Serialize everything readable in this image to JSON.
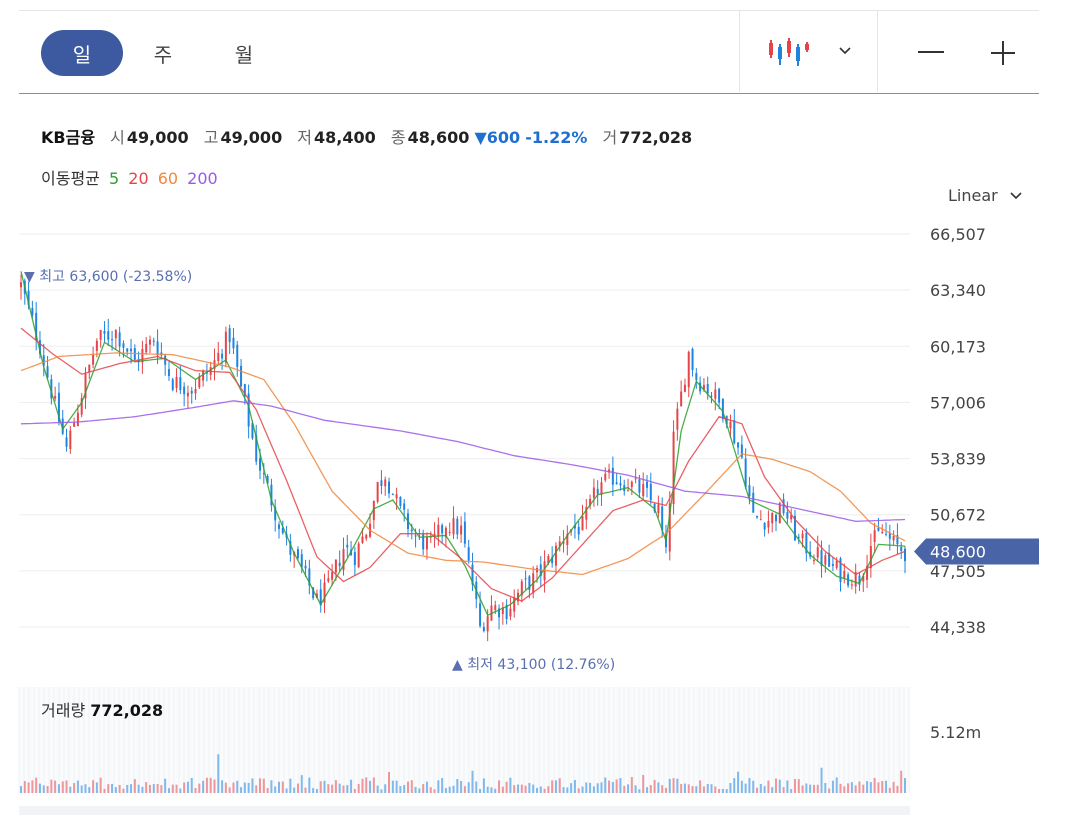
{
  "toolbar": {
    "tabs": [
      {
        "label": "일",
        "active": true
      },
      {
        "label": "주",
        "active": false
      },
      {
        "label": "월",
        "active": false
      }
    ],
    "chart_type_icon": "candlestick-icon",
    "dropdown_icon": "chevron-down-icon",
    "zoom_out_icon": "minus-icon",
    "zoom_in_icon": "plus-icon"
  },
  "info": {
    "name": "KB금융",
    "open_label": "시",
    "open": "49,000",
    "high_label": "고",
    "high": "49,000",
    "low_label": "저",
    "low": "48,400",
    "close_label": "종",
    "close": "48,600",
    "change_arrow": "▼",
    "change": "600",
    "change_pct": "-1.22%",
    "volume_label": "거",
    "volume": "772,028"
  },
  "ma": {
    "label": "이동평균",
    "periods": [
      {
        "label": "5",
        "color": "#2ca02c"
      },
      {
        "label": "20",
        "color": "#e5454a"
      },
      {
        "label": "60",
        "color": "#f0883e"
      },
      {
        "label": "200",
        "color": "#9b59e6"
      }
    ]
  },
  "scale": {
    "label": "Linear"
  },
  "colors": {
    "up": "#e5454a",
    "down": "#1f84e0",
    "accent": "#3d5aa0",
    "price_tag": "#4a64a8"
  },
  "chart_data": [
    {
      "type": "candlestick",
      "title": "",
      "ylim": [
        43000,
        66507
      ],
      "y_ticks": [
        {
          "value": 66507,
          "label": "66,507"
        },
        {
          "value": 63340,
          "label": "63,340"
        },
        {
          "value": 60173,
          "label": "60,173"
        },
        {
          "value": 57006,
          "label": "57,006"
        },
        {
          "value": 53839,
          "label": "53,839"
        },
        {
          "value": 50672,
          "label": "50,672"
        },
        {
          "value": 47505,
          "label": "47,505"
        },
        {
          "value": 44338,
          "label": "44,338"
        }
      ],
      "last_price": {
        "value": 48600,
        "label": "48,600"
      },
      "high_annotation": {
        "arrow": "▼",
        "label": "최고",
        "value": "63,600",
        "pct": "(-23.58%)",
        "price": 63600
      },
      "low_annotation": {
        "arrow": "▲",
        "label": "최저",
        "value": "43,100",
        "pct": "(12.76%)",
        "price": 43100
      },
      "close_path": [
        {
          "i": 0,
          "v": 63600
        },
        {
          "i": 5,
          "v": 60200
        },
        {
          "i": 9,
          "v": 56800
        },
        {
          "i": 12,
          "v": 54400
        },
        {
          "i": 16,
          "v": 57500
        },
        {
          "i": 20,
          "v": 60500
        },
        {
          "i": 25,
          "v": 61000
        },
        {
          "i": 30,
          "v": 59300
        },
        {
          "i": 35,
          "v": 60600
        },
        {
          "i": 40,
          "v": 58200
        },
        {
          "i": 45,
          "v": 57800
        },
        {
          "i": 50,
          "v": 58900
        },
        {
          "i": 55,
          "v": 60800
        },
        {
          "i": 58,
          "v": 57800
        },
        {
          "i": 62,
          "v": 54000
        },
        {
          "i": 66,
          "v": 51500
        },
        {
          "i": 70,
          "v": 49000
        },
        {
          "i": 74,
          "v": 47500
        },
        {
          "i": 78,
          "v": 45800
        },
        {
          "i": 81,
          "v": 46500
        },
        {
          "i": 85,
          "v": 48800
        },
        {
          "i": 88,
          "v": 48400
        },
        {
          "i": 91,
          "v": 49800
        },
        {
          "i": 94,
          "v": 52300
        },
        {
          "i": 96,
          "v": 53000
        },
        {
          "i": 100,
          "v": 50800
        },
        {
          "i": 104,
          "v": 49400
        },
        {
          "i": 108,
          "v": 48900
        },
        {
          "i": 112,
          "v": 50200
        },
        {
          "i": 116,
          "v": 49800
        },
        {
          "i": 119,
          "v": 46800
        },
        {
          "i": 121,
          "v": 44300
        },
        {
          "i": 124,
          "v": 45500
        },
        {
          "i": 128,
          "v": 45300
        },
        {
          "i": 132,
          "v": 46500
        },
        {
          "i": 136,
          "v": 47200
        },
        {
          "i": 140,
          "v": 48300
        },
        {
          "i": 144,
          "v": 49800
        },
        {
          "i": 148,
          "v": 50000
        },
        {
          "i": 152,
          "v": 52200
        },
        {
          "i": 156,
          "v": 52800
        },
        {
          "i": 160,
          "v": 52400
        },
        {
          "i": 164,
          "v": 52000
        },
        {
          "i": 168,
          "v": 50900
        },
        {
          "i": 170,
          "v": 48300
        },
        {
          "i": 172,
          "v": 55000
        },
        {
          "i": 174,
          "v": 57400
        },
        {
          "i": 176,
          "v": 59800
        },
        {
          "i": 178,
          "v": 58400
        },
        {
          "i": 182,
          "v": 57600
        },
        {
          "i": 186,
          "v": 56300
        },
        {
          "i": 190,
          "v": 53900
        },
        {
          "i": 193,
          "v": 50500
        },
        {
          "i": 197,
          "v": 50400
        },
        {
          "i": 201,
          "v": 51000
        },
        {
          "i": 205,
          "v": 49200
        },
        {
          "i": 209,
          "v": 48500
        },
        {
          "i": 213,
          "v": 47800
        },
        {
          "i": 217,
          "v": 47300
        },
        {
          "i": 221,
          "v": 47100
        },
        {
          "i": 224,
          "v": 49000
        },
        {
          "i": 227,
          "v": 49700
        },
        {
          "i": 230,
          "v": 49000
        },
        {
          "i": 233,
          "v": 48600
        }
      ],
      "ma_series": [
        {
          "name": "5",
          "points": [
            {
              "i": 0,
              "v": 64400
            },
            {
              "i": 6,
              "v": 59000
            },
            {
              "i": 11,
              "v": 55500
            },
            {
              "i": 16,
              "v": 57000
            },
            {
              "i": 22,
              "v": 60400
            },
            {
              "i": 30,
              "v": 59300
            },
            {
              "i": 38,
              "v": 59500
            },
            {
              "i": 46,
              "v": 58300
            },
            {
              "i": 54,
              "v": 59400
            },
            {
              "i": 60,
              "v": 56800
            },
            {
              "i": 66,
              "v": 51500
            },
            {
              "i": 72,
              "v": 48500
            },
            {
              "i": 79,
              "v": 45600
            },
            {
              "i": 86,
              "v": 48200
            },
            {
              "i": 93,
              "v": 51000
            },
            {
              "i": 98,
              "v": 51500
            },
            {
              "i": 105,
              "v": 49400
            },
            {
              "i": 112,
              "v": 49500
            },
            {
              "i": 117,
              "v": 47800
            },
            {
              "i": 123,
              "v": 45000
            },
            {
              "i": 129,
              "v": 45600
            },
            {
              "i": 136,
              "v": 47000
            },
            {
              "i": 144,
              "v": 49500
            },
            {
              "i": 152,
              "v": 51800
            },
            {
              "i": 160,
              "v": 52200
            },
            {
              "i": 167,
              "v": 51000
            },
            {
              "i": 170,
              "v": 49200
            },
            {
              "i": 174,
              "v": 55400
            },
            {
              "i": 178,
              "v": 58200
            },
            {
              "i": 185,
              "v": 56500
            },
            {
              "i": 192,
              "v": 51500
            },
            {
              "i": 200,
              "v": 50700
            },
            {
              "i": 208,
              "v": 48400
            },
            {
              "i": 215,
              "v": 47200
            },
            {
              "i": 221,
              "v": 46800
            },
            {
              "i": 226,
              "v": 49000
            },
            {
              "i": 233,
              "v": 48900
            }
          ]
        },
        {
          "name": "20",
          "points": [
            {
              "i": 0,
              "v": 61200
            },
            {
              "i": 8,
              "v": 59800
            },
            {
              "i": 16,
              "v": 58600
            },
            {
              "i": 26,
              "v": 59200
            },
            {
              "i": 36,
              "v": 59600
            },
            {
              "i": 46,
              "v": 58800
            },
            {
              "i": 55,
              "v": 58700
            },
            {
              "i": 62,
              "v": 56600
            },
            {
              "i": 70,
              "v": 52600
            },
            {
              "i": 78,
              "v": 48300
            },
            {
              "i": 85,
              "v": 46900
            },
            {
              "i": 92,
              "v": 47700
            },
            {
              "i": 100,
              "v": 49600
            },
            {
              "i": 108,
              "v": 49600
            },
            {
              "i": 116,
              "v": 48200
            },
            {
              "i": 124,
              "v": 46500
            },
            {
              "i": 132,
              "v": 45800
            },
            {
              "i": 140,
              "v": 47100
            },
            {
              "i": 148,
              "v": 49000
            },
            {
              "i": 156,
              "v": 50900
            },
            {
              "i": 164,
              "v": 51500
            },
            {
              "i": 170,
              "v": 51200
            },
            {
              "i": 176,
              "v": 53700
            },
            {
              "i": 184,
              "v": 56200
            },
            {
              "i": 190,
              "v": 55800
            },
            {
              "i": 196,
              "v": 52800
            },
            {
              "i": 204,
              "v": 50400
            },
            {
              "i": 212,
              "v": 48600
            },
            {
              "i": 220,
              "v": 47300
            },
            {
              "i": 227,
              "v": 48100
            },
            {
              "i": 233,
              "v": 48600
            }
          ]
        },
        {
          "name": "60",
          "points": [
            {
              "i": 0,
              "v": 58800
            },
            {
              "i": 10,
              "v": 59600
            },
            {
              "i": 25,
              "v": 59800
            },
            {
              "i": 40,
              "v": 59700
            },
            {
              "i": 55,
              "v": 59000
            },
            {
              "i": 64,
              "v": 58300
            },
            {
              "i": 72,
              "v": 55800
            },
            {
              "i": 82,
              "v": 52000
            },
            {
              "i": 92,
              "v": 49800
            },
            {
              "i": 102,
              "v": 48500
            },
            {
              "i": 112,
              "v": 48100
            },
            {
              "i": 122,
              "v": 48000
            },
            {
              "i": 135,
              "v": 47600
            },
            {
              "i": 148,
              "v": 47300
            },
            {
              "i": 160,
              "v": 48200
            },
            {
              "i": 170,
              "v": 49600
            },
            {
              "i": 180,
              "v": 51800
            },
            {
              "i": 190,
              "v": 54100
            },
            {
              "i": 198,
              "v": 53800
            },
            {
              "i": 208,
              "v": 53100
            },
            {
              "i": 216,
              "v": 52000
            },
            {
              "i": 224,
              "v": 50200
            },
            {
              "i": 233,
              "v": 49200
            }
          ]
        },
        {
          "name": "200",
          "points": [
            {
              "i": 0,
              "v": 55800
            },
            {
              "i": 15,
              "v": 55900
            },
            {
              "i": 30,
              "v": 56200
            },
            {
              "i": 45,
              "v": 56700
            },
            {
              "i": 56,
              "v": 57100
            },
            {
              "i": 66,
              "v": 56800
            },
            {
              "i": 80,
              "v": 56000
            },
            {
              "i": 100,
              "v": 55400
            },
            {
              "i": 115,
              "v": 54800
            },
            {
              "i": 130,
              "v": 54000
            },
            {
              "i": 145,
              "v": 53500
            },
            {
              "i": 160,
              "v": 52900
            },
            {
              "i": 175,
              "v": 52000
            },
            {
              "i": 190,
              "v": 51700
            },
            {
              "i": 205,
              "v": 51000
            },
            {
              "i": 220,
              "v": 50300
            },
            {
              "i": 233,
              "v": 50400
            }
          ]
        }
      ]
    },
    {
      "type": "bar",
      "title": "거래량",
      "current_value": "772,028",
      "y_ticks": [
        {
          "value": 5120000,
          "label": "5.12m"
        }
      ],
      "ylim": [
        0,
        5120000
      ],
      "peak": {
        "i": 52,
        "v": 3200000
      },
      "typical_range": [
        300000,
        1300000
      ]
    }
  ]
}
